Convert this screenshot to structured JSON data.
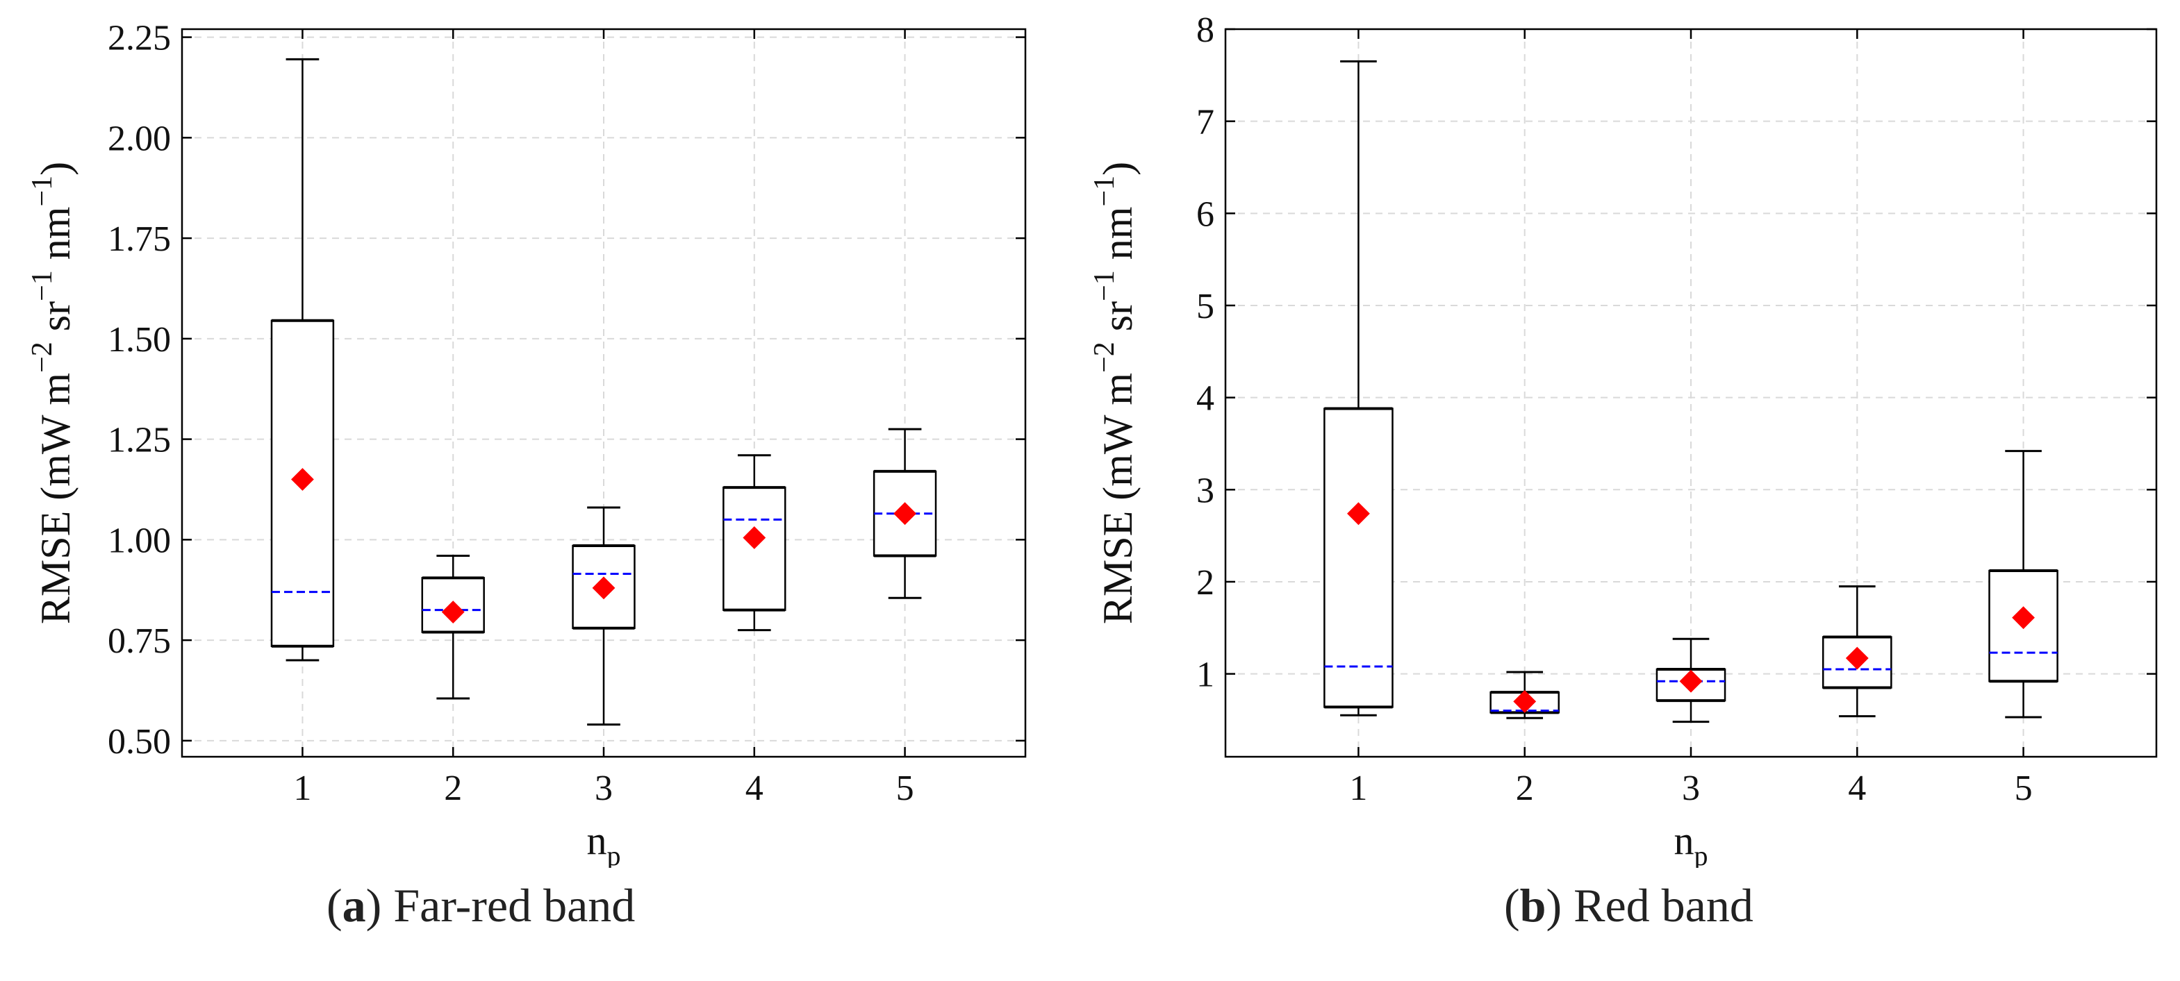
{
  "chart_data": [
    {
      "type": "box",
      "panel": "a",
      "caption_letter": "a",
      "caption_text": "Far-red band",
      "xlabel": "n",
      "xlabel_sub": "p",
      "ylabel": "RMSE (mW m−2 sr−1 nm−1)",
      "ylabel_parts": [
        "RMSE (mW m",
        "−2",
        " sr",
        "−1",
        " nm",
        "−1",
        ")"
      ],
      "categories": [
        "1",
        "2",
        "3",
        "4",
        "5"
      ],
      "ylim": [
        0.46,
        2.27
      ],
      "yticks": [
        0.5,
        0.75,
        1.0,
        1.25,
        1.5,
        1.75,
        2.0,
        2.25
      ],
      "ytick_labels": [
        "0.50",
        "0.75",
        "1.00",
        "1.25",
        "1.50",
        "1.75",
        "2.00",
        "2.25"
      ],
      "grid": true,
      "boxes": [
        {
          "category": "1",
          "whisker_low": 0.7,
          "q1": 0.735,
          "median": 0.87,
          "q3": 1.545,
          "whisker_high": 2.195,
          "mean": 1.15
        },
        {
          "category": "2",
          "whisker_low": 0.605,
          "q1": 0.77,
          "median": 0.825,
          "q3": 0.905,
          "whisker_high": 0.96,
          "mean": 0.82
        },
        {
          "category": "3",
          "whisker_low": 0.54,
          "q1": 0.78,
          "median": 0.915,
          "q3": 0.985,
          "whisker_high": 1.08,
          "mean": 0.88
        },
        {
          "category": "4",
          "whisker_low": 0.775,
          "q1": 0.825,
          "median": 1.05,
          "q3": 1.13,
          "whisker_high": 1.21,
          "mean": 1.005
        },
        {
          "category": "5",
          "whisker_low": 0.855,
          "q1": 0.96,
          "median": 1.065,
          "q3": 1.17,
          "whisker_high": 1.275,
          "mean": 1.065
        }
      ],
      "colors": {
        "median": "#0000ff",
        "mean": "#ff0000",
        "box": "#000000",
        "grid": "#d9d9d9"
      }
    },
    {
      "type": "box",
      "panel": "b",
      "caption_letter": "b",
      "caption_text": "Red band",
      "xlabel": "n",
      "xlabel_sub": "p",
      "ylabel": "RMSE (mW m−2 sr−1 nm−1)",
      "ylabel_parts": [
        "RMSE (mW m",
        "−2",
        " sr",
        "−1",
        " nm",
        "−1",
        ")"
      ],
      "categories": [
        "1",
        "2",
        "3",
        "4",
        "5"
      ],
      "ylim": [
        0.1,
        8.0
      ],
      "yticks": [
        1,
        2,
        3,
        4,
        5,
        6,
        7,
        8
      ],
      "ytick_labels": [
        "1",
        "2",
        "3",
        "4",
        "5",
        "6",
        "7",
        "8"
      ],
      "grid": true,
      "boxes": [
        {
          "category": "1",
          "whisker_low": 0.55,
          "q1": 0.64,
          "median": 1.08,
          "q3": 3.88,
          "whisker_high": 7.65,
          "mean": 2.74
        },
        {
          "category": "2",
          "whisker_low": 0.52,
          "q1": 0.58,
          "median": 0.6,
          "q3": 0.8,
          "whisker_high": 1.02,
          "mean": 0.7
        },
        {
          "category": "3",
          "whisker_low": 0.48,
          "q1": 0.71,
          "median": 0.92,
          "q3": 1.05,
          "whisker_high": 1.38,
          "mean": 0.92
        },
        {
          "category": "4",
          "whisker_low": 0.54,
          "q1": 0.85,
          "median": 1.05,
          "q3": 1.4,
          "whisker_high": 1.95,
          "mean": 1.17
        },
        {
          "category": "5",
          "whisker_low": 0.53,
          "q1": 0.92,
          "median": 1.23,
          "q3": 2.12,
          "whisker_high": 3.42,
          "mean": 1.61
        }
      ],
      "colors": {
        "median": "#0000ff",
        "mean": "#ff0000",
        "box": "#000000",
        "grid": "#d9d9d9"
      }
    }
  ]
}
